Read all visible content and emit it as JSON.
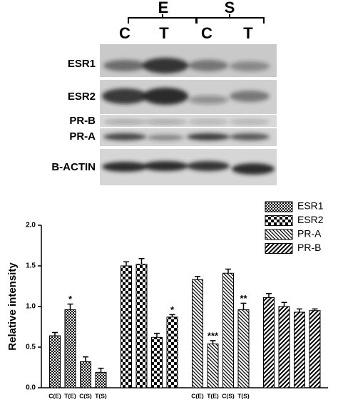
{
  "blot": {
    "groups": [
      "E",
      "S"
    ],
    "lanes": [
      "C",
      "T",
      "C",
      "T"
    ],
    "rows": [
      "ESR1",
      "ESR2",
      "PR-B",
      "PR-A",
      "B-ACTIN"
    ]
  },
  "chart_data": {
    "type": "bar",
    "y_label": "Relative intensity",
    "categories": [
      "C(E)",
      "T(E)",
      "C(S)",
      "T(S)",
      null,
      null,
      null,
      null,
      "C(E)",
      "T(E)",
      "C(S)",
      "T(S)",
      null,
      null,
      null,
      null
    ],
    "series": [
      {
        "name": "ESR1",
        "color": "#000000",
        "values": [
          0.64,
          0.96,
          0.32,
          0.19,
          null,
          null,
          null,
          null,
          null,
          null,
          null,
          null,
          null,
          null,
          null,
          null
        ],
        "errors": [
          0.04,
          0.07,
          0.06,
          0.05,
          null,
          null,
          null,
          null,
          null,
          null,
          null,
          null,
          null,
          null,
          null,
          null
        ],
        "significance": [
          null,
          "*",
          null,
          null,
          null,
          null,
          null,
          null,
          null,
          null,
          null,
          null,
          null,
          null,
          null,
          null
        ]
      },
      {
        "name": "ESR2",
        "color": "#000000",
        "values": [
          null,
          null,
          null,
          null,
          1.5,
          1.52,
          0.62,
          0.87,
          null,
          null,
          null,
          null,
          null,
          null,
          null,
          null
        ],
        "errors": [
          null,
          null,
          null,
          null,
          0.05,
          0.07,
          0.05,
          0.03,
          null,
          null,
          null,
          null,
          null,
          null,
          null,
          null
        ],
        "significance": [
          null,
          null,
          null,
          null,
          null,
          null,
          null,
          "*",
          null,
          null,
          null,
          null,
          null,
          null,
          null,
          null
        ]
      },
      {
        "name": "PR-A",
        "color": "#000000",
        "values": [
          null,
          null,
          null,
          null,
          null,
          null,
          null,
          null,
          1.33,
          0.54,
          1.41,
          0.96,
          null,
          null,
          null,
          null
        ],
        "errors": [
          null,
          null,
          null,
          null,
          null,
          null,
          null,
          null,
          0.04,
          0.04,
          0.05,
          0.08,
          null,
          null,
          null,
          null
        ],
        "significance": [
          null,
          null,
          null,
          null,
          null,
          null,
          null,
          null,
          null,
          "***",
          null,
          "**",
          null,
          null,
          null,
          null
        ]
      },
      {
        "name": "PR-B",
        "color": "#000000",
        "values": [
          null,
          null,
          null,
          null,
          null,
          null,
          null,
          null,
          null,
          null,
          null,
          null,
          1.11,
          1.0,
          0.93,
          0.95
        ],
        "errors": [
          null,
          null,
          null,
          null,
          null,
          null,
          null,
          null,
          null,
          null,
          null,
          null,
          0.05,
          0.05,
          0.04,
          0.02
        ],
        "significance": [
          null,
          null,
          null,
          null,
          null,
          null,
          null,
          null,
          null,
          null,
          null,
          null,
          null,
          null,
          null,
          null
        ]
      }
    ],
    "ylim": [
      0,
      2
    ],
    "yticks": [
      {
        "value": 0,
        "label": "0.0"
      },
      {
        "value": 0.5,
        "label": "0.5"
      },
      {
        "value": 1,
        "label": "1.0"
      },
      {
        "value": 1.5,
        "label": "1.5"
      },
      {
        "value": 2,
        "label": "2.0"
      }
    ],
    "legend": "top-right"
  }
}
